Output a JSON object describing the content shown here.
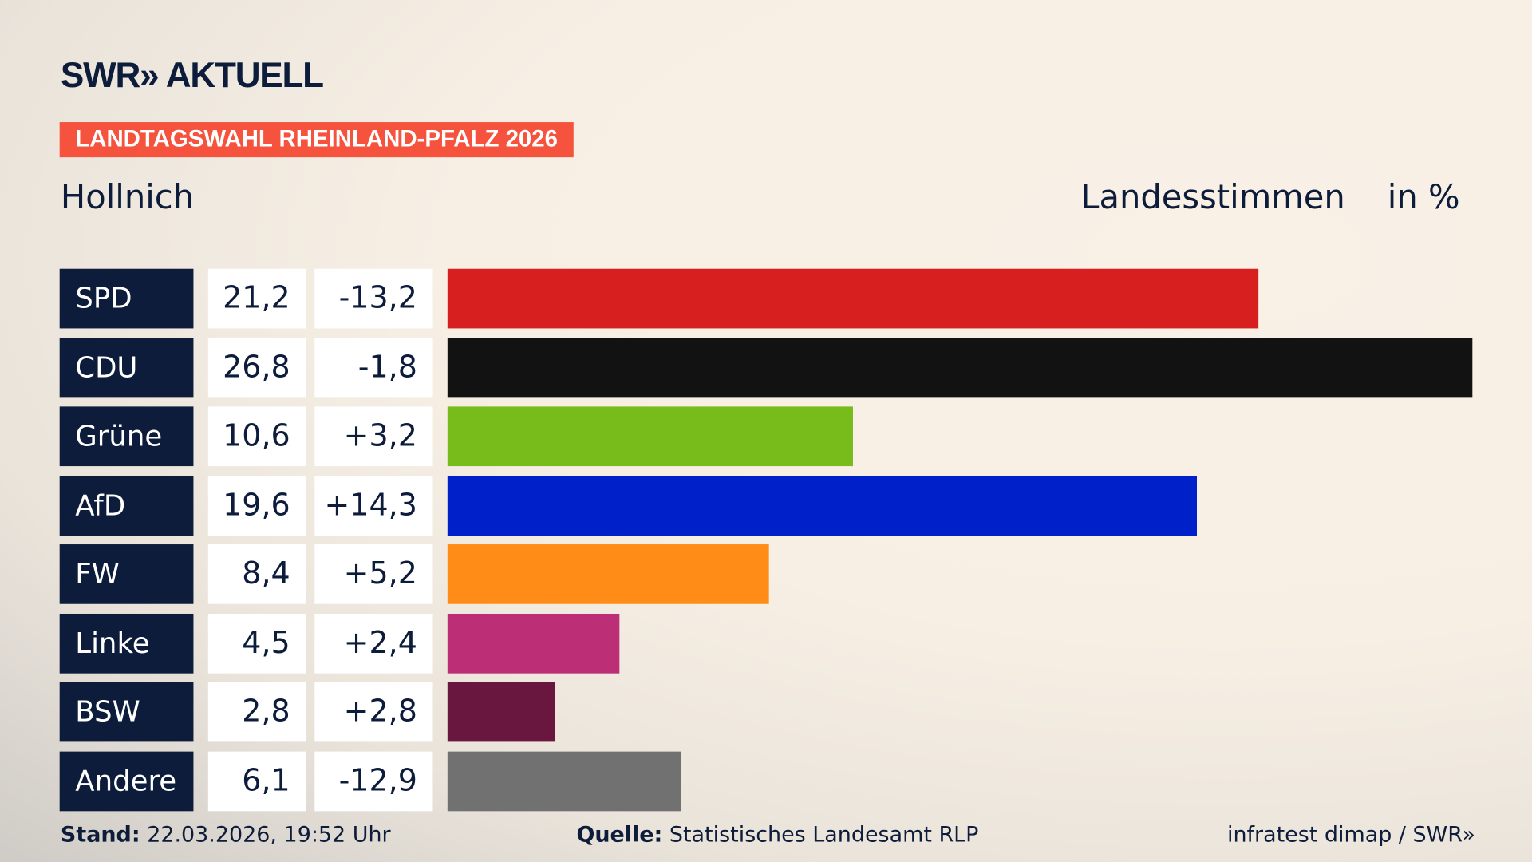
{
  "logo": "SWR» AKTUELL",
  "banner": "LANDTAGSWAHL RHEINLAND-PFALZ 2026",
  "place": "Hollnich",
  "label_votes": "Landesstimmen",
  "label_unit": "in %",
  "footer": {
    "stand_label": "Stand:",
    "stand_value": "22.03.2026, 19:52 Uhr",
    "source_label": "Quelle:",
    "source_value": "Statistisches Landesamt RLP",
    "credit": "infratest dimap / SWR»"
  },
  "chart_data": {
    "type": "bar",
    "orientation": "horizontal",
    "categories": [
      "SPD",
      "CDU",
      "Grüne",
      "AfD",
      "FW",
      "Linke",
      "BSW",
      "Andere"
    ],
    "values": [
      21.2,
      26.8,
      10.6,
      19.6,
      8.4,
      4.5,
      2.8,
      6.1
    ],
    "value_labels": [
      "21,2",
      "26,8",
      "10,6",
      "19,6",
      "8,4",
      "4,5",
      "2,8",
      "6,1"
    ],
    "change_labels": [
      "-13,2",
      "-1,8",
      "+3,2",
      "+14,3",
      "+5,2",
      "+2,4",
      "+2,8",
      "-12,9"
    ],
    "changes": [
      -13.2,
      -1.8,
      3.2,
      14.3,
      5.2,
      2.4,
      2.8,
      -12.9
    ],
    "colors": [
      "#d81f20",
      "#121212",
      "#78bc1b",
      "#0021c9",
      "#ff8c17",
      "#bc2f76",
      "#6a1740",
      "#717171"
    ],
    "xlim": [
      0,
      26.8
    ]
  }
}
